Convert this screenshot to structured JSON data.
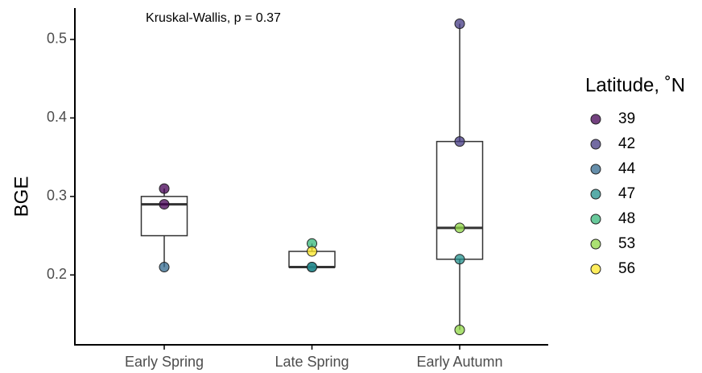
{
  "chart_data": {
    "type": "box",
    "ylabel": "BGE",
    "annotation": "Kruskal-Wallis, p = 0.37",
    "legend_title": "Latitude, ˚N",
    "legend_position": "right",
    "categories": [
      "Early Spring",
      "Late Spring",
      "Early Autumn"
    ],
    "boxes": [
      {
        "min": 0.21,
        "q1": 0.25,
        "median": 0.29,
        "q3": 0.3,
        "max": 0.31
      },
      {
        "min": 0.21,
        "q1": 0.21,
        "median": 0.21,
        "q3": 0.23,
        "max": 0.24
      },
      {
        "min": 0.13,
        "q1": 0.22,
        "median": 0.26,
        "q3": 0.37,
        "max": 0.52
      }
    ],
    "series": [
      {
        "name": "39",
        "color": "#440154",
        "x": [
          "Early Spring",
          "Early Spring"
        ],
        "values": [
          0.31,
          0.29
        ]
      },
      {
        "name": "42",
        "color": "#443A83",
        "x": [
          "Early Autumn",
          "Early Autumn"
        ],
        "values": [
          0.52,
          0.37
        ]
      },
      {
        "name": "44",
        "color": "#31688E",
        "x": [
          "Early Spring",
          "Late Spring"
        ],
        "values": [
          0.21,
          0.21
        ]
      },
      {
        "name": "47",
        "color": "#21908C",
        "x": [
          "Late Spring",
          "Early Autumn"
        ],
        "values": [
          0.21,
          0.22
        ]
      },
      {
        "name": "48",
        "color": "#35B779",
        "x": [
          "Late Spring"
        ],
        "values": [
          0.24
        ]
      },
      {
        "name": "53",
        "color": "#8FD744",
        "x": [
          "Early Autumn",
          "Early Autumn"
        ],
        "values": [
          0.26,
          0.13
        ]
      },
      {
        "name": "56",
        "color": "#FDE725",
        "x": [
          "Late Spring"
        ],
        "values": [
          0.23
        ]
      }
    ],
    "ylim": [
      0.111,
      0.54
    ],
    "yticks": [
      {
        "value": 0.2,
        "label": "0.2"
      },
      {
        "value": 0.3,
        "label": "0.3"
      },
      {
        "value": 0.4,
        "label": "0.4"
      },
      {
        "value": 0.5,
        "label": "0.5"
      }
    ],
    "grid": false
  }
}
